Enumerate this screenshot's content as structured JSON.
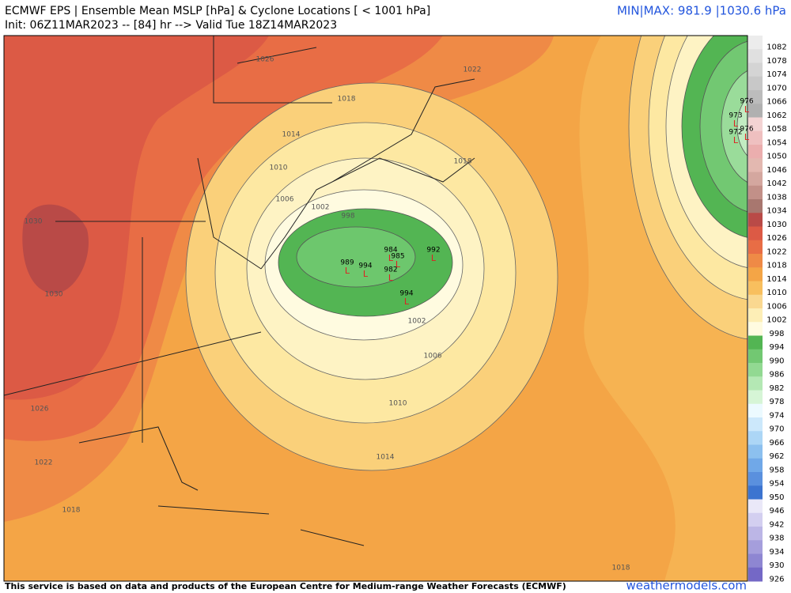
{
  "header": {
    "title": "ECMWF EPS | Ensemble Mean MSLP [hPa] & Cyclone Locations [ < 1001 hPa]",
    "init": "Init: 06Z11MAR2023 -- [84] hr --> Valid Tue 18Z14MAR2023",
    "minmax": "MIN|MAX: 981.9 |1030.6 hPa"
  },
  "colorbar": {
    "labels": [
      "1082",
      "1078",
      "1074",
      "1070",
      "1066",
      "1062",
      "1058",
      "1054",
      "1050",
      "1046",
      "1042",
      "1038",
      "1034",
      "1030",
      "1026",
      "1022",
      "1018",
      "1014",
      "1010",
      "1006",
      "1002",
      "998",
      "994",
      "990",
      "986",
      "982",
      "978",
      "974",
      "970",
      "966",
      "962",
      "958",
      "954",
      "950",
      "946",
      "942",
      "938",
      "934",
      "930",
      "926"
    ]
  },
  "contour_labels": [
    "1026",
    "1022",
    "1018",
    "1014",
    "1010",
    "1006",
    "1002",
    "998",
    "1018",
    "1030",
    "1030",
    "1026",
    "1022",
    "1018",
    "1002",
    "1006",
    "1010",
    "1014",
    "1018"
  ],
  "cyclone_labels": [
    "992",
    "994",
    "989",
    "985",
    "982",
    "984",
    "994",
    "976",
    "973",
    "972",
    "976"
  ],
  "footer": {
    "credit": "This service is based on data and products of the European Centre for Medium-range Weather Forecasts (ECMWF)",
    "brand": "weathermodels.com"
  }
}
